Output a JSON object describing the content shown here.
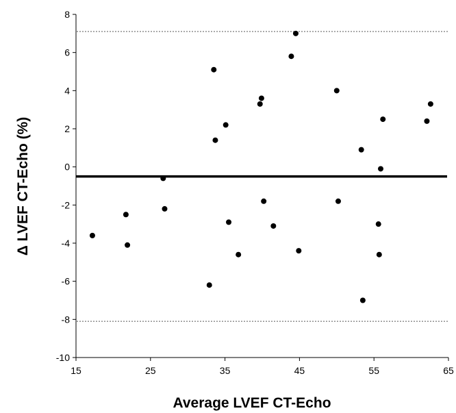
{
  "chart_data": {
    "type": "scatter",
    "xlabel": "Average LVEF CT-Echo",
    "ylabel": "Δ LVEF  CT-Echo (%)",
    "xlim": [
      15,
      65
    ],
    "ylim": [
      -10,
      8
    ],
    "x_ticks": [
      15,
      25,
      35,
      45,
      55,
      65
    ],
    "y_ticks": [
      8,
      6,
      4,
      2,
      0,
      -2,
      -4,
      -6,
      -8,
      -10
    ],
    "grid": false,
    "legend": "none",
    "mean_line": -0.5,
    "limits_of_agreement": [
      7.1,
      -8.1
    ],
    "points": [
      {
        "x": 17.2,
        "y": -3.6
      },
      {
        "x": 21.7,
        "y": -2.5
      },
      {
        "x": 21.9,
        "y": -4.1
      },
      {
        "x": 26.7,
        "y": -0.6
      },
      {
        "x": 26.9,
        "y": -2.2
      },
      {
        "x": 32.9,
        "y": -6.2
      },
      {
        "x": 33.5,
        "y": 5.1
      },
      {
        "x": 33.7,
        "y": 1.4
      },
      {
        "x": 35.1,
        "y": 2.2
      },
      {
        "x": 35.5,
        "y": -2.9
      },
      {
        "x": 36.8,
        "y": -4.6
      },
      {
        "x": 39.7,
        "y": 3.3
      },
      {
        "x": 39.9,
        "y": 3.6
      },
      {
        "x": 40.2,
        "y": -1.8
      },
      {
        "x": 41.5,
        "y": -3.1
      },
      {
        "x": 43.9,
        "y": 5.8
      },
      {
        "x": 44.5,
        "y": 7.0
      },
      {
        "x": 44.9,
        "y": -4.4
      },
      {
        "x": 50.0,
        "y": 4.0
      },
      {
        "x": 50.2,
        "y": -1.8
      },
      {
        "x": 53.3,
        "y": 0.9
      },
      {
        "x": 53.5,
        "y": -7.0
      },
      {
        "x": 55.6,
        "y": -3.0
      },
      {
        "x": 55.7,
        "y": -4.6
      },
      {
        "x": 55.9,
        "y": -0.1
      },
      {
        "x": 56.2,
        "y": 2.5
      },
      {
        "x": 62.1,
        "y": 2.4
      },
      {
        "x": 62.6,
        "y": 3.3
      }
    ]
  }
}
